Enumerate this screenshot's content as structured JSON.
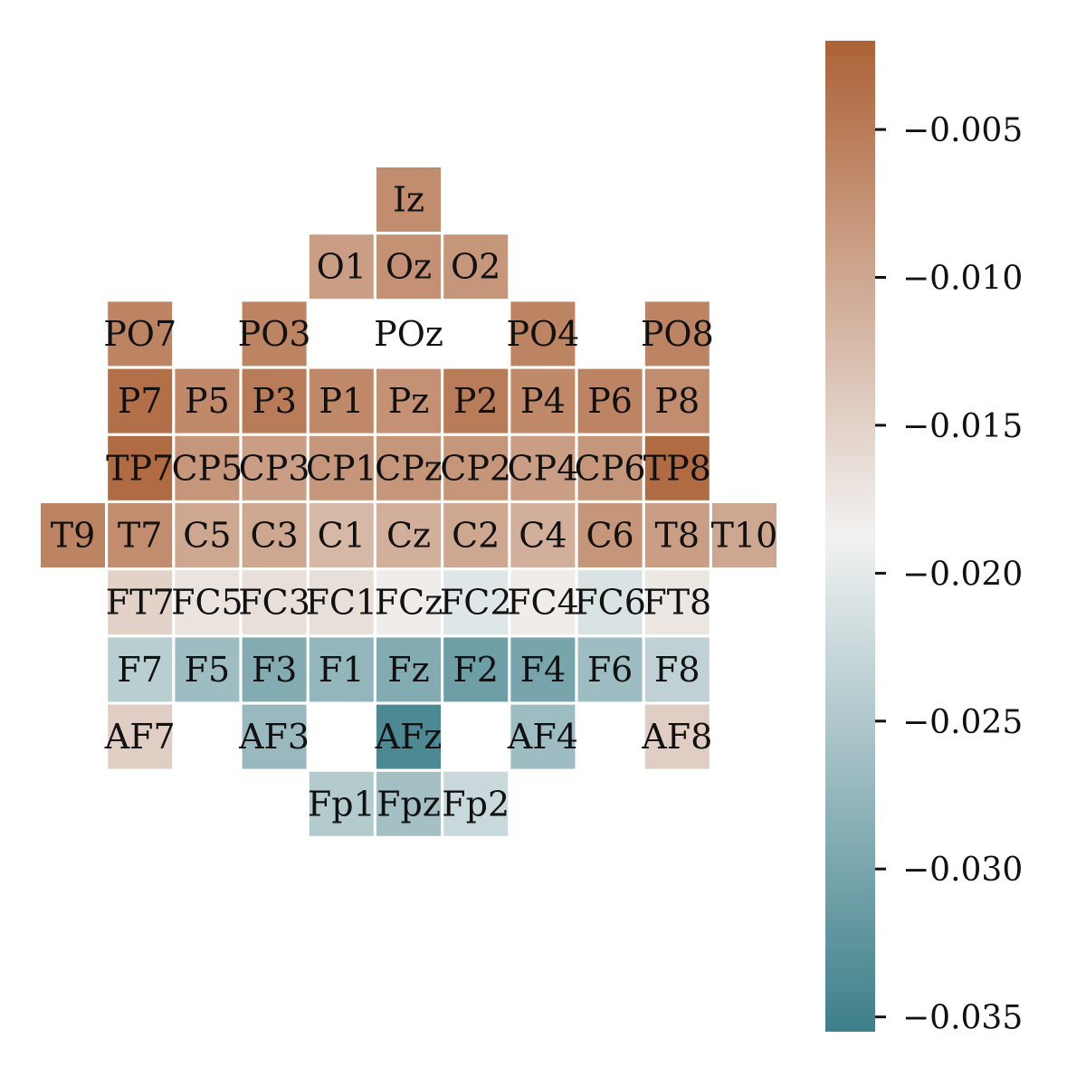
{
  "chart_data": {
    "type": "heatmap",
    "title": "",
    "xlabel": "",
    "ylabel": "",
    "grid": false,
    "cells": [
      {
        "label": "Iz",
        "row": 0,
        "col": 5,
        "value": -0.007
      },
      {
        "label": "O1",
        "row": 1,
        "col": 4,
        "value": -0.009
      },
      {
        "label": "Oz",
        "row": 1,
        "col": 5,
        "value": -0.0075
      },
      {
        "label": "O2",
        "row": 1,
        "col": 6,
        "value": -0.008
      },
      {
        "label": "PO7",
        "row": 2,
        "col": 1,
        "value": -0.006
      },
      {
        "label": "PO3",
        "row": 2,
        "col": 3,
        "value": -0.006
      },
      {
        "label": "POz",
        "row": 2,
        "col": 5,
        "value": null
      },
      {
        "label": "PO4",
        "row": 2,
        "col": 7,
        "value": -0.006
      },
      {
        "label": "PO8",
        "row": 2,
        "col": 9,
        "value": -0.006
      },
      {
        "label": "P7",
        "row": 3,
        "col": 1,
        "value": -0.0035
      },
      {
        "label": "P5",
        "row": 3,
        "col": 2,
        "value": -0.0065
      },
      {
        "label": "P3",
        "row": 3,
        "col": 3,
        "value": -0.005
      },
      {
        "label": "P1",
        "row": 3,
        "col": 4,
        "value": -0.0065
      },
      {
        "label": "Pz",
        "row": 3,
        "col": 5,
        "value": -0.0075
      },
      {
        "label": "P2",
        "row": 3,
        "col": 6,
        "value": -0.005
      },
      {
        "label": "P4",
        "row": 3,
        "col": 7,
        "value": -0.0065
      },
      {
        "label": "P6",
        "row": 3,
        "col": 8,
        "value": -0.006
      },
      {
        "label": "P8",
        "row": 3,
        "col": 9,
        "value": -0.007
      },
      {
        "label": "TP7",
        "row": 4,
        "col": 1,
        "value": -0.003
      },
      {
        "label": "CP5",
        "row": 4,
        "col": 2,
        "value": -0.008
      },
      {
        "label": "CP3",
        "row": 4,
        "col": 3,
        "value": -0.009
      },
      {
        "label": "CP1",
        "row": 4,
        "col": 4,
        "value": -0.008
      },
      {
        "label": "CPz",
        "row": 4,
        "col": 5,
        "value": -0.008
      },
      {
        "label": "CP2",
        "row": 4,
        "col": 6,
        "value": -0.008
      },
      {
        "label": "CP4",
        "row": 4,
        "col": 7,
        "value": -0.009
      },
      {
        "label": "CP6",
        "row": 4,
        "col": 8,
        "value": -0.008
      },
      {
        "label": "TP8",
        "row": 4,
        "col": 9,
        "value": -0.003
      },
      {
        "label": "T9",
        "row": 5,
        "col": 0,
        "value": -0.006
      },
      {
        "label": "T7",
        "row": 5,
        "col": 1,
        "value": -0.007
      },
      {
        "label": "C5",
        "row": 5,
        "col": 2,
        "value": -0.01
      },
      {
        "label": "C3",
        "row": 5,
        "col": 3,
        "value": -0.01
      },
      {
        "label": "C1",
        "row": 5,
        "col": 4,
        "value": -0.012
      },
      {
        "label": "Cz",
        "row": 5,
        "col": 5,
        "value": -0.011
      },
      {
        "label": "C2",
        "row": 5,
        "col": 6,
        "value": -0.01
      },
      {
        "label": "C4",
        "row": 5,
        "col": 7,
        "value": -0.011
      },
      {
        "label": "C6",
        "row": 5,
        "col": 8,
        "value": -0.008
      },
      {
        "label": "T8",
        "row": 5,
        "col": 9,
        "value": -0.009
      },
      {
        "label": "T10",
        "row": 5,
        "col": 10,
        "value": -0.01
      },
      {
        "label": "FT7",
        "row": 6,
        "col": 1,
        "value": -0.015
      },
      {
        "label": "FC5",
        "row": 6,
        "col": 2,
        "value": -0.017
      },
      {
        "label": "FC3",
        "row": 6,
        "col": 3,
        "value": -0.0165
      },
      {
        "label": "FC1",
        "row": 6,
        "col": 4,
        "value": -0.0165
      },
      {
        "label": "FCz",
        "row": 6,
        "col": 5,
        "value": -0.018
      },
      {
        "label": "FC2",
        "row": 6,
        "col": 6,
        "value": -0.0205
      },
      {
        "label": "FC4",
        "row": 6,
        "col": 7,
        "value": -0.018
      },
      {
        "label": "FC6",
        "row": 6,
        "col": 8,
        "value": -0.021
      },
      {
        "label": "FT8",
        "row": 6,
        "col": 9,
        "value": -0.0175
      },
      {
        "label": "F7",
        "row": 7,
        "col": 1,
        "value": -0.024
      },
      {
        "label": "F5",
        "row": 7,
        "col": 2,
        "value": -0.0265
      },
      {
        "label": "F3",
        "row": 7,
        "col": 3,
        "value": -0.029
      },
      {
        "label": "F1",
        "row": 7,
        "col": 4,
        "value": -0.0275
      },
      {
        "label": "Fz",
        "row": 7,
        "col": 5,
        "value": -0.029
      },
      {
        "label": "F2",
        "row": 7,
        "col": 6,
        "value": -0.031
      },
      {
        "label": "F4",
        "row": 7,
        "col": 7,
        "value": -0.03
      },
      {
        "label": "F6",
        "row": 7,
        "col": 8,
        "value": -0.0265
      },
      {
        "label": "F8",
        "row": 7,
        "col": 9,
        "value": -0.0235
      },
      {
        "label": "AF7",
        "row": 8,
        "col": 1,
        "value": -0.0145
      },
      {
        "label": "AF3",
        "row": 8,
        "col": 3,
        "value": -0.027
      },
      {
        "label": "AFz",
        "row": 8,
        "col": 5,
        "value": -0.034
      },
      {
        "label": "AF4",
        "row": 8,
        "col": 7,
        "value": -0.0265
      },
      {
        "label": "AF8",
        "row": 8,
        "col": 9,
        "value": -0.0145
      },
      {
        "label": "Fp1",
        "row": 9,
        "col": 4,
        "value": -0.0245
      },
      {
        "label": "Fpz",
        "row": 9,
        "col": 5,
        "value": -0.026
      },
      {
        "label": "Fp2",
        "row": 9,
        "col": 6,
        "value": -0.0225
      }
    ],
    "colorbar": {
      "vmin": -0.0355,
      "vmax": -0.002,
      "ticks": [
        -0.005,
        -0.01,
        -0.015,
        -0.02,
        -0.025,
        -0.03,
        -0.035
      ],
      "tick_labels": [
        "−0.005",
        "−0.010",
        "−0.015",
        "−0.020",
        "−0.025",
        "−0.030",
        "−0.035"
      ],
      "low_color": "#3d7f8a",
      "mid_color": "#f2f2f2",
      "high_color": "#ad6237"
    }
  }
}
